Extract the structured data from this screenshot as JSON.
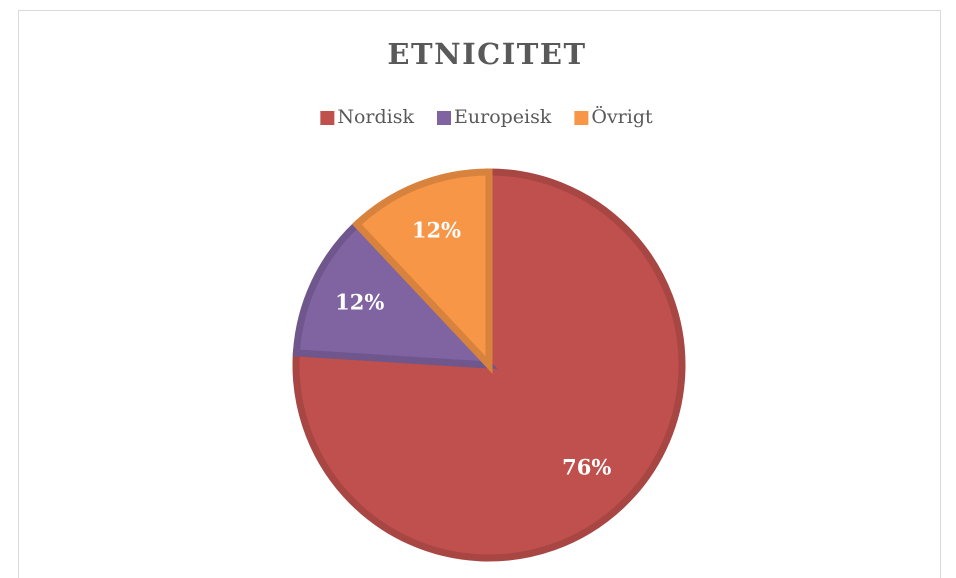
{
  "chart_data": {
    "type": "pie",
    "title": "ETNICITET",
    "categories": [
      "Nordisk",
      "Europeisk",
      "Övrigt"
    ],
    "values": [
      76,
      12,
      12
    ],
    "value_labels": [
      "76%",
      "12%",
      "12%"
    ],
    "colors": [
      "#c0504d",
      "#8064a2",
      "#f79646"
    ],
    "legend": "top"
  }
}
